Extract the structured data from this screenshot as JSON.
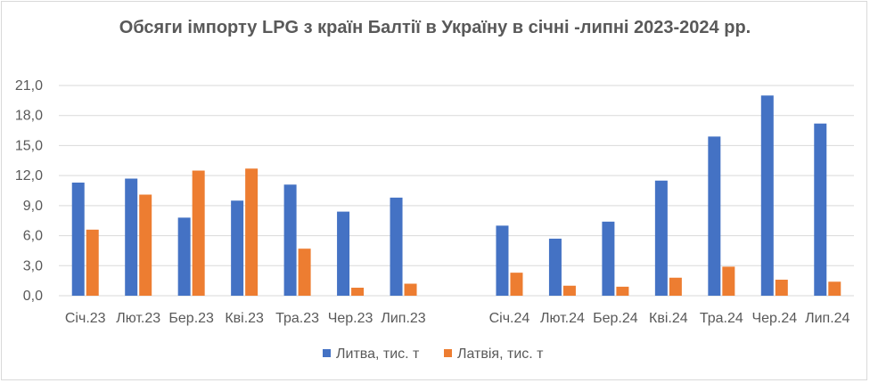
{
  "chart_data": {
    "type": "bar",
    "title": "Обсяги імпорту LPG з країн Балтії в Україну в січні -липні 2023-2024 рр.",
    "xlabel": "",
    "ylabel": "",
    "categories": [
      "Січ.23",
      "Лют.23",
      "Бер.23",
      "Кві.23",
      "Тра.23",
      "Чер.23",
      "Лип.23",
      "",
      "Січ.24",
      "Лют.24",
      "Бер.24",
      "Кві.24",
      "Тра.24",
      "Чер.24",
      "Лип.24"
    ],
    "series": [
      {
        "name": "Литва, тис. т",
        "color": "#4472c4",
        "values": [
          11.3,
          11.7,
          7.8,
          9.5,
          11.1,
          8.4,
          9.8,
          null,
          7.0,
          5.7,
          7.4,
          11.5,
          15.9,
          20.0,
          17.2
        ]
      },
      {
        "name": "Латвія, тис. т",
        "color": "#ed7d31",
        "values": [
          6.6,
          10.1,
          12.5,
          12.7,
          4.7,
          0.8,
          1.2,
          null,
          2.3,
          1.0,
          0.9,
          1.8,
          2.9,
          1.6,
          1.4
        ]
      }
    ],
    "ylim": [
      0,
      21
    ],
    "yticks": [
      "0,0",
      "3,0",
      "6,0",
      "9,0",
      "12,0",
      "15,0",
      "18,0",
      "21,0"
    ],
    "grid": true,
    "legend_position": "bottom"
  }
}
